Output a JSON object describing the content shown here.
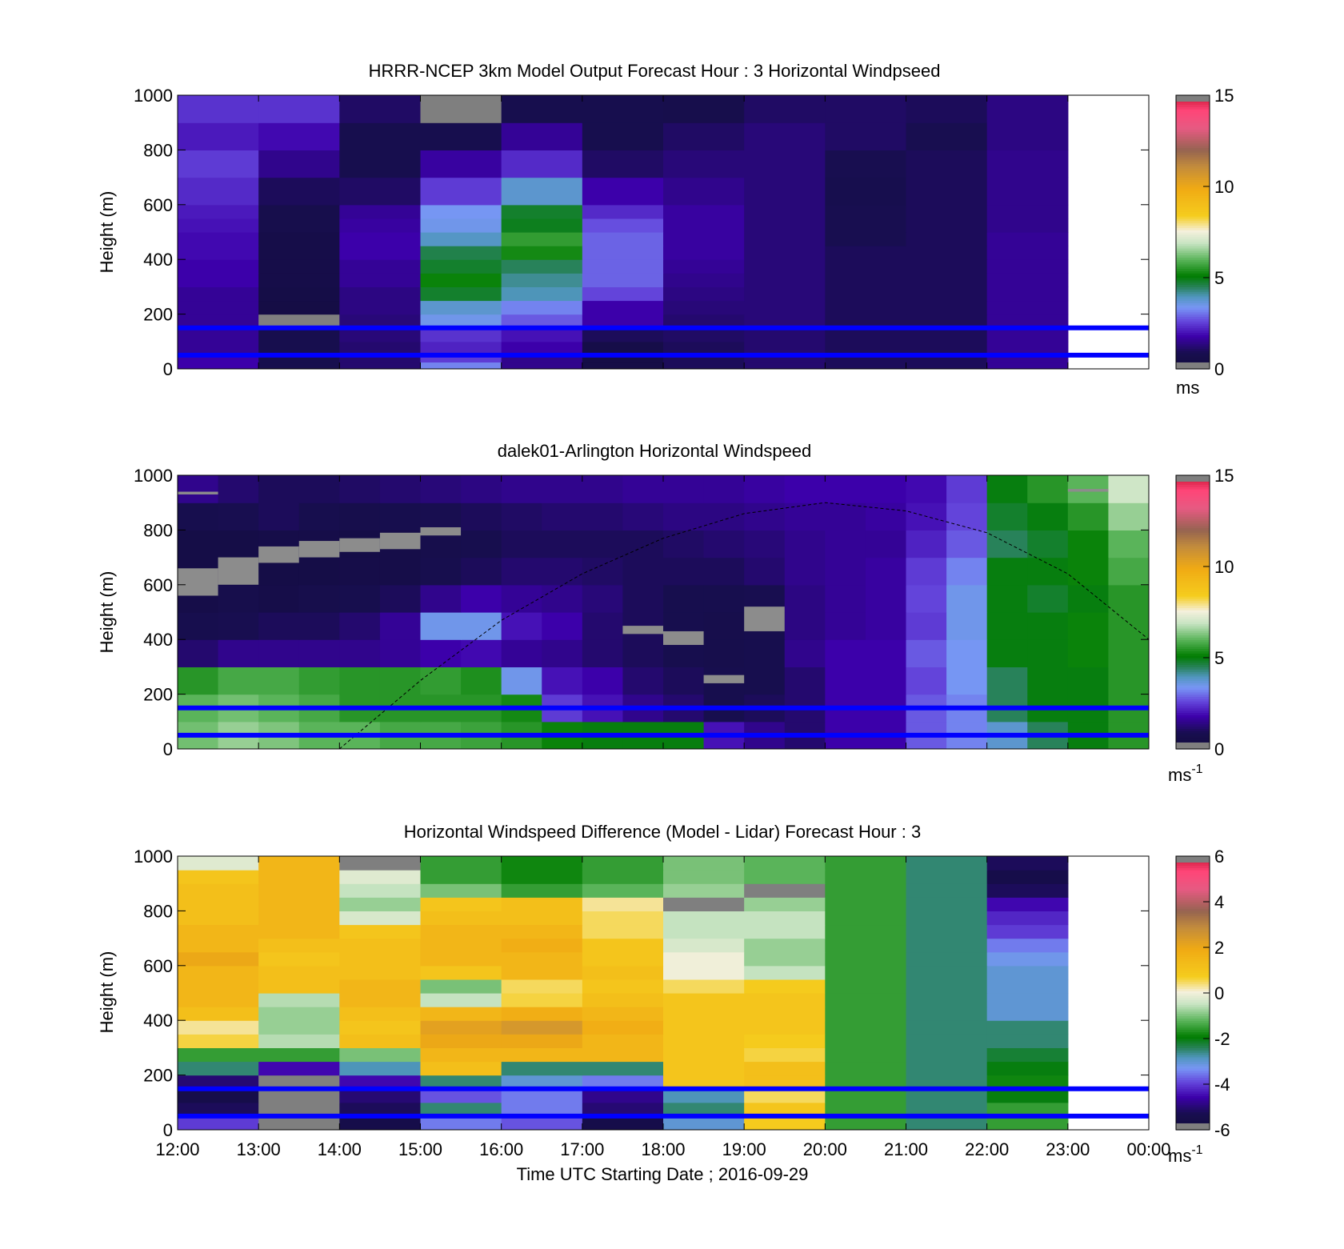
{
  "figure": {
    "xlabel": "Time UTC  Starting Date ; 2016-09-29",
    "x_tick_labels": [
      "12:00",
      "13:00",
      "14:00",
      "15:00",
      "16:00",
      "17:00",
      "18:00",
      "19:00",
      "20:00",
      "21:00",
      "22:00",
      "23:00",
      "00:00"
    ],
    "reference_heights_m": [
      150,
      50
    ],
    "reference_line_color": "#0000ff"
  },
  "chart_data": [
    {
      "type": "heatmap",
      "title": "HRRR-NCEP 3km Model Output   Forecast Hour : 3 Horizontal Windpseed",
      "xlabel": "",
      "ylabel": "Height (m)",
      "ylim": [
        0,
        1000
      ],
      "y_ticks": [
        0,
        200,
        400,
        600,
        800,
        1000
      ],
      "x_range_hours": [
        12,
        24
      ],
      "colorbar": {
        "min": 0,
        "max": 15,
        "ticks": [
          0,
          5,
          10,
          15
        ],
        "units_label": "ms",
        "units_superscript": ""
      },
      "grid": false,
      "time_columns_start_hours": [
        12,
        13,
        14,
        15,
        16,
        17,
        18,
        19,
        20,
        21,
        22
      ],
      "column_width_hours": 1,
      "level_bottoms_m": [
        0,
        25,
        50,
        100,
        150,
        200,
        250,
        300,
        350,
        400,
        450,
        500,
        550,
        600,
        700,
        800,
        900
      ],
      "level_tops_m": [
        25,
        50,
        100,
        150,
        200,
        250,
        300,
        350,
        400,
        450,
        500,
        550,
        600,
        700,
        800,
        900,
        1000
      ],
      "values_ms": [
        [
          1.8,
          0.8,
          1.2,
          3.2,
          1.5,
          0.5,
          1.0,
          1.2,
          1.0,
          1.0,
          1.6
        ],
        [
          1.8,
          0.8,
          1.2,
          2.5,
          1.5,
          0.5,
          1.0,
          1.2,
          1.0,
          1.0,
          1.6
        ],
        [
          1.6,
          0.8,
          1.2,
          2.2,
          1.8,
          0.6,
          1.0,
          1.2,
          1.0,
          1.0,
          1.6
        ],
        [
          1.6,
          0.8,
          1.3,
          2.4,
          2.0,
          1.0,
          1.1,
          1.2,
          1.0,
          1.0,
          1.6
        ],
        [
          1.6,
          0.0,
          1.3,
          3.5,
          2.8,
          1.8,
          1.2,
          1.3,
          1.0,
          1.0,
          1.6
        ],
        [
          1.6,
          0.4,
          1.4,
          3.8,
          3.2,
          1.8,
          1.3,
          1.3,
          1.0,
          1.0,
          1.6
        ],
        [
          1.6,
          0.5,
          1.4,
          4.8,
          4.0,
          2.6,
          1.4,
          1.3,
          1.0,
          1.0,
          1.6
        ],
        [
          1.8,
          0.6,
          1.6,
          5.2,
          4.2,
          2.9,
          1.5,
          1.3,
          1.0,
          1.0,
          1.6
        ],
        [
          1.8,
          0.6,
          1.6,
          4.8,
          4.5,
          2.9,
          1.6,
          1.3,
          1.0,
          1.0,
          1.6
        ],
        [
          1.9,
          0.6,
          1.8,
          4.6,
          5.3,
          2.9,
          1.7,
          1.3,
          1.0,
          1.0,
          1.6
        ],
        [
          1.9,
          0.6,
          1.8,
          3.9,
          5.6,
          2.9,
          1.7,
          1.3,
          0.9,
          1.0,
          1.6
        ],
        [
          2.0,
          0.7,
          1.7,
          3.5,
          4.9,
          2.7,
          1.7,
          1.3,
          0.9,
          1.0,
          1.5
        ],
        [
          2.1,
          0.7,
          1.6,
          3.4,
          4.8,
          2.3,
          1.7,
          1.3,
          0.9,
          1.0,
          1.5
        ],
        [
          2.3,
          1.0,
          1.1,
          2.5,
          3.8,
          1.8,
          1.5,
          1.3,
          0.8,
          1.0,
          1.5
        ],
        [
          2.5,
          1.5,
          0.8,
          1.7,
          2.3,
          1.1,
          1.3,
          1.3,
          0.9,
          1.0,
          1.5
        ],
        [
          2.1,
          1.9,
          0.8,
          0.8,
          1.6,
          0.8,
          1.1,
          1.3,
          1.1,
          0.9,
          1.4
        ],
        [
          2.4,
          2.4,
          1.1,
          15.0,
          0.8,
          0.8,
          0.7,
          1.1,
          1.1,
          1.0,
          1.4
        ]
      ]
    },
    {
      "type": "heatmap",
      "title": "dalek01-Arlington  Horizontal Windspeed",
      "xlabel": "",
      "ylabel": "Height (m)",
      "ylim": [
        0,
        1000
      ],
      "y_ticks": [
        0,
        200,
        400,
        600,
        800,
        1000
      ],
      "x_range_hours": [
        12,
        24
      ],
      "colorbar": {
        "min": 0,
        "max": 15,
        "ticks": [
          0,
          5,
          10,
          15
        ],
        "units_label": "ms",
        "units_superscript": "-1"
      },
      "grid": false,
      "time_columns_start_hours": [
        12.0,
        12.5,
        13.0,
        13.5,
        14.0,
        14.5,
        15.0,
        15.5,
        16.0,
        16.5,
        17.0,
        17.5,
        18.0,
        18.5,
        19.0,
        19.5,
        20.0,
        20.5,
        21.0,
        21.5,
        22.0,
        22.5,
        23.0,
        23.5
      ],
      "column_width_hours": 0.5,
      "level_bottoms_m": [
        0,
        100,
        200,
        300,
        400,
        500,
        600,
        700,
        800,
        900
      ],
      "level_tops_m": [
        100,
        200,
        300,
        400,
        500,
        600,
        700,
        800,
        900,
        1000
      ],
      "values_ms": [
        [
          6.2,
          6.5,
          6.3,
          6.0,
          6.0,
          5.8,
          5.8,
          5.7,
          5.5,
          5.2,
          5.0,
          5.0,
          5.0,
          2.0,
          1.5,
          1.2,
          1.8,
          1.8,
          2.8,
          3.2,
          3.8,
          4.5,
          5.0,
          5.5
        ],
        [
          6.0,
          6.2,
          6.0,
          5.8,
          5.5,
          5.5,
          5.5,
          5.5,
          5.3,
          2.5,
          2.0,
          1.5,
          1.2,
          0.8,
          1.0,
          1.2,
          1.8,
          1.8,
          2.8,
          3.2,
          4.5,
          5.0,
          5.0,
          5.5
        ],
        [
          5.5,
          5.8,
          5.8,
          5.6,
          5.5,
          5.5,
          5.6,
          5.4,
          3.5,
          2.0,
          1.8,
          1.2,
          1.0,
          0.8,
          0.8,
          1.2,
          1.8,
          1.8,
          2.6,
          3.4,
          4.5,
          5.0,
          5.0,
          5.5
        ],
        [
          1.2,
          1.5,
          1.5,
          1.5,
          1.5,
          1.6,
          1.8,
          1.9,
          1.6,
          1.5,
          1.2,
          1.0,
          0.8,
          0.7,
          0.8,
          1.5,
          1.8,
          1.8,
          2.8,
          3.4,
          5.0,
          5.0,
          5.2,
          5.5
        ],
        [
          0.8,
          0.9,
          1.0,
          1.0,
          1.2,
          1.6,
          3.5,
          3.5,
          2.0,
          1.8,
          1.2,
          1.0,
          0.8,
          0.7,
          0.8,
          1.4,
          1.6,
          1.7,
          2.5,
          3.5,
          5.0,
          5.0,
          5.2,
          5.5
        ],
        [
          0.6,
          0.7,
          0.6,
          0.7,
          0.8,
          1.0,
          1.5,
          1.8,
          1.6,
          1.5,
          1.3,
          1.0,
          0.8,
          0.8,
          0.9,
          1.4,
          1.6,
          1.7,
          2.6,
          3.5,
          5.0,
          4.8,
          5.0,
          5.5
        ],
        [
          0.5,
          0.5,
          0.5,
          0.5,
          0.6,
          0.6,
          0.8,
          1.0,
          1.2,
          1.2,
          1.1,
          1.0,
          1.0,
          1.0,
          1.2,
          1.5,
          1.6,
          1.7,
          2.5,
          3.2,
          5.0,
          5.0,
          5.2,
          5.8
        ],
        [
          0.5,
          0.5,
          0.6,
          0.6,
          0.5,
          0.6,
          0.7,
          0.8,
          1.0,
          1.0,
          1.0,
          1.0,
          1.1,
          1.2,
          1.3,
          1.5,
          1.6,
          1.6,
          2.2,
          2.8,
          4.5,
          4.8,
          5.2,
          6.0
        ],
        [
          0.8,
          0.9,
          1.0,
          0.8,
          0.7,
          0.8,
          0.9,
          1.0,
          1.1,
          1.2,
          1.2,
          1.3,
          1.4,
          1.4,
          1.5,
          1.6,
          1.6,
          1.7,
          2.0,
          2.6,
          4.8,
          5.0,
          5.5,
          6.5
        ],
        [
          1.5,
          1.2,
          1.0,
          1.0,
          1.1,
          1.2,
          1.3,
          1.4,
          1.5,
          1.5,
          1.5,
          1.6,
          1.6,
          1.6,
          1.7,
          1.8,
          1.8,
          1.8,
          1.9,
          2.5,
          5.0,
          5.5,
          6.0,
          7.0
        ]
      ],
      "gray_out_of_range_patches": [
        {
          "x_hours": [
            12.0,
            12.5
          ],
          "y_m": [
            560,
            660
          ]
        },
        {
          "x_hours": [
            12.5,
            13.0
          ],
          "y_m": [
            600,
            700
          ]
        },
        {
          "x_hours": [
            13.0,
            13.5
          ],
          "y_m": [
            680,
            740
          ]
        },
        {
          "x_hours": [
            13.5,
            14.0
          ],
          "y_m": [
            700,
            760
          ]
        },
        {
          "x_hours": [
            14.0,
            14.5
          ],
          "y_m": [
            720,
            770
          ]
        },
        {
          "x_hours": [
            14.5,
            15.0
          ],
          "y_m": [
            730,
            790
          ]
        },
        {
          "x_hours": [
            15.0,
            15.5
          ],
          "y_m": [
            780,
            810
          ]
        },
        {
          "x_hours": [
            17.5,
            18.0
          ],
          "y_m": [
            420,
            450
          ]
        },
        {
          "x_hours": [
            18.0,
            18.5
          ],
          "y_m": [
            380,
            430
          ]
        },
        {
          "x_hours": [
            18.5,
            19.0
          ],
          "y_m": [
            240,
            270
          ]
        },
        {
          "x_hours": [
            19.0,
            19.5
          ],
          "y_m": [
            430,
            520
          ]
        },
        {
          "x_hours": [
            12.0,
            12.5
          ],
          "y_m": [
            930,
            940
          ]
        },
        {
          "x_hours": [
            23.0,
            23.5
          ],
          "y_m": [
            940,
            950
          ]
        }
      ],
      "dashed_curve_points": [
        [
          14.0,
          0
        ],
        [
          15.0,
          250
        ],
        [
          16.0,
          470
        ],
        [
          17.0,
          640
        ],
        [
          18.0,
          770
        ],
        [
          19.0,
          860
        ],
        [
          20.0,
          900
        ],
        [
          21.0,
          870
        ],
        [
          22.0,
          790
        ],
        [
          23.0,
          640
        ],
        [
          24.0,
          400
        ]
      ]
    },
    {
      "type": "heatmap",
      "title": "Horizontal Windspeed Difference (Model - Lidar) Forecast Hour : 3",
      "xlabel": "Time UTC  Starting Date ; 2016-09-29",
      "ylabel": "Height (m)",
      "ylim": [
        0,
        1000
      ],
      "y_ticks": [
        0,
        200,
        400,
        600,
        800,
        1000
      ],
      "x_range_hours": [
        12,
        24
      ],
      "colorbar": {
        "min": -6,
        "max": 6,
        "ticks": [
          -6,
          -4,
          -2,
          0,
          2,
          4,
          6
        ],
        "units_label": "ms",
        "units_superscript": "-1"
      },
      "grid": false,
      "time_columns_start_hours": [
        12,
        13,
        14,
        15,
        16,
        17,
        18,
        19,
        20,
        21,
        22
      ],
      "column_width_hours": 1,
      "level_bottoms_m": [
        0,
        50,
        100,
        150,
        200,
        250,
        300,
        350,
        400,
        450,
        500,
        550,
        600,
        650,
        700,
        750,
        800,
        850,
        900,
        950
      ],
      "level_tops_m": [
        50,
        100,
        150,
        200,
        250,
        300,
        350,
        400,
        450,
        500,
        550,
        600,
        650,
        700,
        750,
        800,
        850,
        900,
        950,
        1000
      ],
      "values_ms": [
        [
          -4.0,
          -6.5,
          -5.5,
          -3.5,
          -3.8,
          -5.5,
          -3.0,
          0.8,
          -1.5,
          -2.5,
          -1.5
        ],
        [
          -5.2,
          -6.0,
          -5.2,
          -2.5,
          -3.5,
          -5.0,
          -2.5,
          1.0,
          -1.5,
          -2.5,
          -1.5
        ],
        [
          -5.5,
          -6.5,
          -5.0,
          -3.8,
          -3.5,
          -4.8,
          -2.8,
          0.5,
          -1.5,
          -2.5,
          -2.0
        ],
        [
          -5.0,
          -6.5,
          -4.5,
          -2.5,
          -3.0,
          -3.5,
          1.0,
          1.2,
          -1.5,
          -2.5,
          -1.8
        ],
        [
          -2.5,
          -4.5,
          -2.8,
          1.2,
          -2.5,
          -2.5,
          1.0,
          1.2,
          -1.5,
          -2.5,
          -2.0
        ],
        [
          -1.5,
          -1.5,
          -1.0,
          1.5,
          1.5,
          1.5,
          1.0,
          0.6,
          -1.5,
          -2.5,
          -2.2
        ],
        [
          0.6,
          -0.6,
          1.2,
          2.0,
          2.0,
          1.5,
          1.0,
          0.8,
          -1.5,
          -2.5,
          -2.5
        ],
        [
          0.3,
          -0.8,
          1.0,
          2.2,
          2.5,
          1.8,
          1.0,
          1.0,
          -1.5,
          -2.5,
          -2.5
        ],
        [
          1.2,
          -0.8,
          1.2,
          1.5,
          1.8,
          1.5,
          1.0,
          1.0,
          -1.5,
          -2.5,
          -3.0
        ],
        [
          1.5,
          -0.6,
          1.5,
          -0.5,
          0.6,
          1.2,
          1.0,
          1.0,
          -1.5,
          -2.5,
          -3.0
        ],
        [
          1.5,
          1.2,
          1.5,
          -1.0,
          0.5,
          1.0,
          0.5,
          0.8,
          -1.5,
          -2.5,
          -3.0
        ],
        [
          1.5,
          1.2,
          1.2,
          1.0,
          1.5,
          1.2,
          0.0,
          -0.5,
          -1.5,
          -2.5,
          -3.0
        ],
        [
          2.0,
          1.0,
          1.2,
          1.5,
          1.5,
          1.0,
          0.0,
          -0.8,
          -1.5,
          -2.5,
          -3.2
        ],
        [
          1.5,
          1.2,
          1.2,
          1.5,
          1.8,
          1.0,
          -0.3,
          -0.8,
          -1.5,
          -2.5,
          -3.5
        ],
        [
          1.5,
          1.5,
          1.0,
          1.5,
          1.5,
          0.5,
          -0.5,
          -0.5,
          -1.5,
          -2.5,
          -4.0
        ],
        [
          1.2,
          1.5,
          -0.3,
          1.2,
          1.2,
          0.5,
          -0.5,
          -0.5,
          -1.5,
          -2.5,
          -4.2
        ],
        [
          1.2,
          1.5,
          -0.8,
          1.0,
          1.2,
          0.3,
          6.0,
          -0.8,
          -1.5,
          -2.5,
          -4.5
        ],
        [
          1.2,
          1.5,
          -0.5,
          -1.0,
          -1.5,
          -1.2,
          -0.8,
          6.0,
          -1.5,
          -2.5,
          -5.2
        ],
        [
          1.0,
          1.5,
          -0.2,
          -1.5,
          -1.8,
          -1.5,
          -1.0,
          -1.2,
          -1.5,
          -2.5,
          -5.5
        ],
        [
          -0.2,
          1.5,
          6.0,
          -1.5,
          -1.8,
          -1.5,
          -1.0,
          -1.2,
          -1.5,
          -2.5,
          -5.2
        ]
      ]
    }
  ]
}
